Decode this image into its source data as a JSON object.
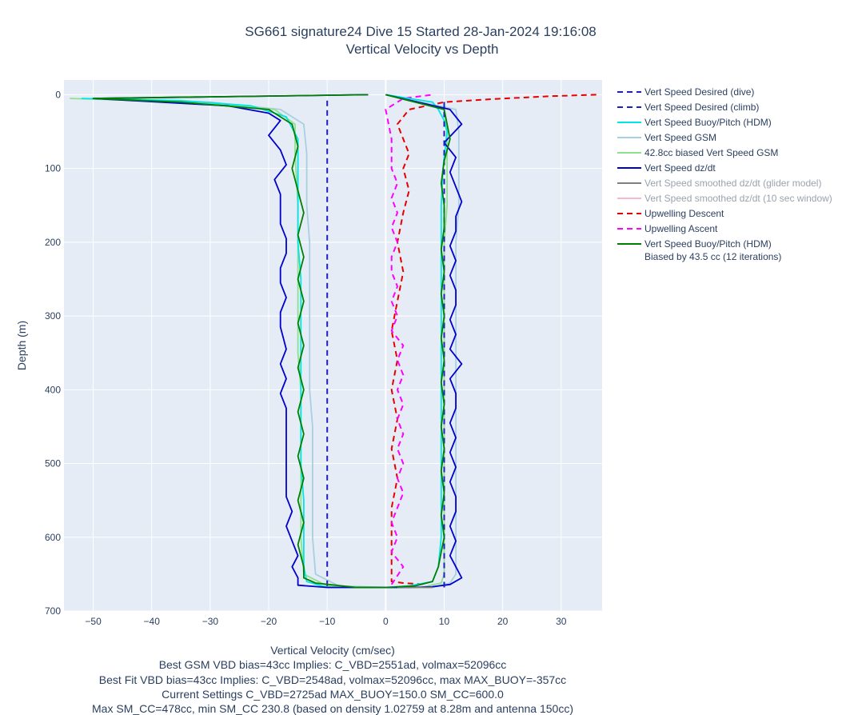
{
  "chart_data": {
    "type": "line",
    "title": "SG661 signature24 Dive 15 Started 28-Jan-2024 19:16:08",
    "subtitle": "Vertical Velocity vs Depth",
    "xlabel": "Vertical Velocity (cm/sec)",
    "ylabel": "Depth (m)",
    "xlim": [
      -55,
      37
    ],
    "ylim": [
      700,
      -20
    ],
    "x_ticks": [
      -50,
      -40,
      -30,
      -20,
      -10,
      0,
      10,
      20,
      30
    ],
    "y_ticks": [
      0,
      100,
      200,
      300,
      400,
      500,
      600,
      700
    ],
    "grid": true,
    "legend_position": "right",
    "notes": [
      "Best GSM VBD bias=43cc Implies: C_VBD=2551ad, volmax=52096cc",
      "Best Fit VBD bias=43cc Implies: C_VBD=2548ad, volmax=52096cc, max MAX_BUOY=-357cc",
      "Current Settings C_VBD=2725ad MAX_BUOY=150.0 SM_CC=600.0",
      "Max SM_CC=478cc, min SM_CC 230.8 (based on density 1.02759 at 8.28m and antenna 150cc)"
    ],
    "series": [
      {
        "name": "Vert Speed Desired (dive)",
        "color": "#1f1fbf",
        "dash": "dash",
        "muted": false,
        "x": [
          -10,
          -10
        ],
        "y": [
          8,
          668
        ]
      },
      {
        "name": "Vert Speed Desired (climb)",
        "color": "#1f1fbf",
        "dash": "dash",
        "muted": false,
        "x": [
          10,
          10
        ],
        "y": [
          668,
          8
        ]
      },
      {
        "name": "Vert Speed Buoy/Pitch (HDM)",
        "color": "#00e5e5",
        "dash": "solid",
        "muted": false,
        "x": [
          -52,
          -35,
          -23,
          -17,
          -15,
          -15,
          -15,
          -15,
          -14.5,
          -14.5,
          -14.5,
          -14.5,
          -14.5,
          -14.5,
          -14,
          -14,
          -14,
          -13.5,
          -10,
          -5,
          -2,
          0,
          4,
          8,
          9,
          9.5,
          9.5,
          9.5,
          9.5,
          9.5,
          9.5,
          9.5,
          9.5,
          9.5,
          9.5,
          9.8,
          10.5,
          10,
          9,
          8,
          0
        ],
        "y": [
          5,
          8,
          15,
          30,
          60,
          100,
          150,
          200,
          250,
          300,
          350,
          400,
          450,
          500,
          550,
          600,
          640,
          660,
          668,
          668,
          668,
          668,
          666,
          660,
          640,
          600,
          550,
          500,
          450,
          400,
          350,
          300,
          250,
          200,
          150,
          100,
          50,
          35,
          20,
          10,
          0
        ]
      },
      {
        "name": "Vert Speed GSM",
        "color": "#a8cfe2",
        "dash": "solid",
        "muted": false,
        "x": [
          -50,
          -30,
          -18,
          -14,
          -13.5,
          -13.5,
          -13,
          -13,
          -13,
          -13,
          -13,
          -12.5,
          -12.5,
          -12.5,
          -12.5,
          -12,
          -8,
          0,
          8,
          11,
          12,
          12,
          12,
          12,
          12,
          12,
          12,
          12,
          12,
          12,
          12.5,
          12.5,
          12.5,
          12,
          0
        ],
        "y": [
          5,
          10,
          20,
          40,
          80,
          150,
          200,
          250,
          300,
          350,
          400,
          450,
          500,
          550,
          600,
          650,
          666,
          668,
          668,
          662,
          650,
          600,
          550,
          500,
          450,
          400,
          350,
          300,
          250,
          200,
          150,
          100,
          50,
          20,
          0
        ]
      },
      {
        "name": "42.8cc biased Vert Speed GSM",
        "color": "#8ee08e",
        "dash": "solid",
        "muted": false,
        "x": [
          -54,
          -32,
          -19,
          -15.5,
          -15.5,
          -15,
          -15,
          -15,
          -15,
          -15,
          -14.5,
          -14.5,
          -14.5,
          -14.5,
          -14.5,
          -14,
          -10,
          0,
          6,
          9.5,
          10,
          10,
          10,
          10,
          10,
          10,
          10,
          10,
          10,
          10,
          10.5,
          10.5,
          10.5,
          10,
          0
        ],
        "y": [
          5,
          10,
          20,
          40,
          80,
          150,
          200,
          250,
          300,
          350,
          400,
          450,
          500,
          550,
          600,
          650,
          666,
          668,
          668,
          662,
          650,
          600,
          550,
          500,
          450,
          400,
          350,
          300,
          250,
          200,
          150,
          100,
          50,
          20,
          0
        ]
      },
      {
        "name": "Vert Speed dz/dt",
        "color": "#0000cc",
        "dash": "solid",
        "muted": false,
        "x": [
          -3,
          -50,
          -27,
          -20,
          -18,
          -20,
          -18,
          -17,
          -19,
          -18,
          -18,
          -18,
          -17,
          -17,
          -18,
          -18,
          -17,
          -18,
          -18,
          -17,
          -18,
          -17,
          -18,
          -17,
          -17,
          -17,
          -17,
          -17,
          -17,
          -17,
          -16,
          -17,
          -16,
          -15,
          -16,
          -15,
          -15,
          -15,
          -10,
          -4,
          0,
          2,
          4,
          8,
          11,
          13,
          12,
          11,
          12,
          11,
          12,
          12,
          11,
          12,
          11,
          12,
          11,
          12,
          12,
          11,
          13,
          11,
          12,
          11,
          12,
          12,
          11,
          12,
          11,
          12,
          12,
          13,
          12,
          11,
          12,
          10,
          13,
          11,
          0
        ],
        "y": [
          0,
          5,
          15,
          25,
          35,
          55,
          75,
          95,
          115,
          135,
          155,
          175,
          195,
          215,
          235,
          255,
          275,
          295,
          315,
          345,
          365,
          385,
          405,
          425,
          445,
          465,
          485,
          505,
          525,
          545,
          565,
          585,
          605,
          625,
          640,
          655,
          660,
          665,
          668,
          668,
          668,
          668,
          668,
          667,
          664,
          655,
          640,
          625,
          605,
          585,
          565,
          545,
          525,
          505,
          485,
          465,
          445,
          425,
          405,
          385,
          365,
          345,
          325,
          305,
          285,
          265,
          245,
          225,
          205,
          185,
          165,
          145,
          125,
          105,
          85,
          65,
          40,
          20,
          0
        ]
      },
      {
        "name": "Vert Speed smoothed dz/dt (glider model)",
        "color": "#7f7f7f",
        "dash": "solid",
        "muted": true,
        "x": [
          2,
          8
        ],
        "y": [
          668,
          668
        ]
      },
      {
        "name": "Vert Speed smoothed dz/dt (10 sec window)",
        "color": "#f7b6d2",
        "dash": "solid",
        "muted": true,
        "x": [],
        "y": []
      },
      {
        "name": "Upwelling Descent",
        "color": "#e60000",
        "dash": "dash",
        "muted": false,
        "x": [
          36,
          28,
          18,
          10,
          4,
          2,
          3,
          4,
          3,
          4,
          3,
          2,
          3,
          2,
          1,
          2,
          1,
          2,
          1,
          2,
          1,
          1,
          1,
          1,
          3,
          7
        ],
        "y": [
          0,
          2,
          6,
          10,
          20,
          40,
          60,
          80,
          100,
          130,
          160,
          200,
          240,
          280,
          320,
          360,
          400,
          440,
          480,
          520,
          560,
          600,
          640,
          660,
          662,
          664
        ]
      },
      {
        "name": "Upwelling Ascent",
        "color": "#ff00ff",
        "dash": "dash",
        "muted": false,
        "x": [
          1,
          3,
          1,
          2,
          1,
          2,
          3,
          2,
          3,
          2,
          3,
          2,
          3,
          2,
          3,
          2,
          3,
          1,
          2,
          1,
          2,
          1,
          1,
          2,
          1,
          2,
          1,
          2,
          1,
          1,
          0,
          3,
          8
        ],
        "y": [
          664,
          640,
          620,
          600,
          580,
          560,
          540,
          520,
          500,
          480,
          460,
          440,
          420,
          400,
          380,
          360,
          340,
          320,
          300,
          280,
          260,
          240,
          220,
          200,
          180,
          160,
          140,
          120,
          100,
          60,
          20,
          5,
          0
        ]
      },
      {
        "name": "Vert Speed Buoy/Pitch (HDM) Biased by 43.5 cc (12 iterations)",
        "line1": "Vert Speed Buoy/Pitch (HDM)",
        "line2": "Biased by 43.5 cc (12 iterations)",
        "color": "#008000",
        "dash": "solid",
        "muted": false,
        "x": [
          -3,
          -50,
          -35,
          -20,
          -16,
          -15,
          -16,
          -15,
          -14,
          -15,
          -14,
          -15,
          -14,
          -15,
          -14,
          -15,
          -14,
          -15,
          -14,
          -15,
          -14,
          -15,
          -14,
          -15,
          -14,
          -14,
          -12,
          -5,
          0,
          5,
          8,
          9,
          9.5,
          10,
          9.5,
          10,
          9.5,
          10,
          9.5,
          10,
          9.5,
          10,
          9.5,
          10,
          9.5,
          10,
          9.5,
          10,
          10,
          9.5,
          10,
          11,
          10,
          0
        ],
        "y": [
          0,
          5,
          10,
          20,
          40,
          70,
          100,
          130,
          160,
          190,
          220,
          250,
          280,
          310,
          340,
          370,
          400,
          430,
          460,
          490,
          520,
          550,
          580,
          610,
          640,
          655,
          662,
          668,
          668,
          666,
          660,
          640,
          620,
          600,
          570,
          540,
          510,
          480,
          450,
          420,
          390,
          360,
          330,
          300,
          270,
          240,
          210,
          180,
          150,
          120,
          90,
          60,
          20,
          0
        ]
      }
    ]
  }
}
